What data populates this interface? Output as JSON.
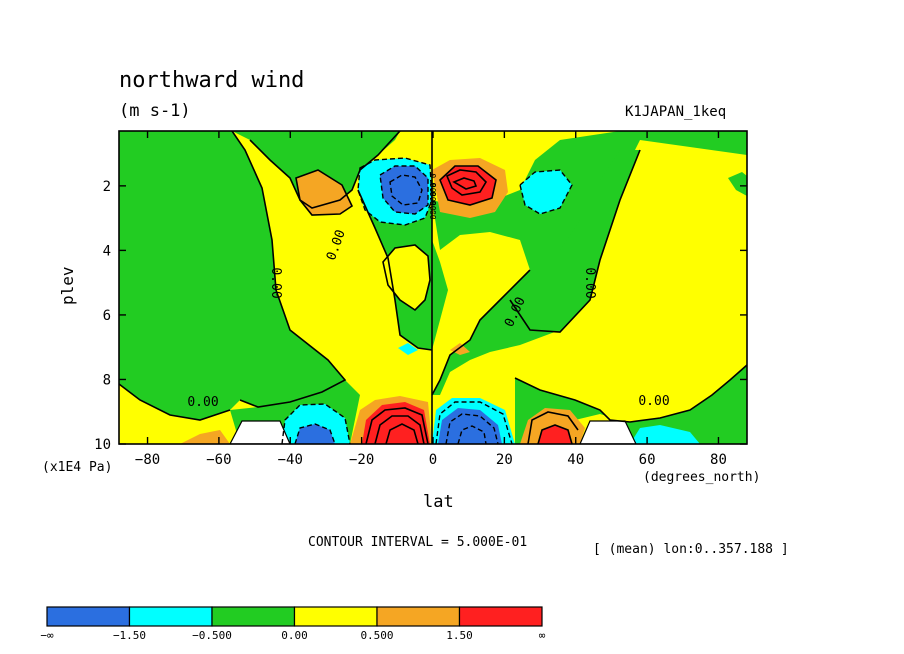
{
  "header": {
    "title": "northward wind",
    "units": "(m s-1)",
    "dataset": "K1JAPAN_1keq"
  },
  "footer": {
    "contour_interval": "CONTOUR INTERVAL = 5.000E-01",
    "mean_note": "[ (mean) lon:0..357.188 ]"
  },
  "chart_data": {
    "type": "heatmap",
    "title": "northward wind",
    "units": "(m s-1)",
    "xlabel": "lat",
    "x_unit_label": "(degrees_north)",
    "ylabel": "plev",
    "y_unit_label": "(x1E4 Pa)",
    "xlim": [
      -88,
      88
    ],
    "ylim": [
      0.3,
      10
    ],
    "y_inverted": true,
    "x_ticks": [
      -80,
      -60,
      -40,
      -20,
      0,
      20,
      40,
      60,
      80
    ],
    "y_ticks": [
      2,
      4,
      6,
      8,
      10
    ],
    "contour_labels": [
      "0.00",
      "0.00",
      "0.00",
      "0.00",
      "0.00",
      "0.00"
    ],
    "color_levels": [
      {
        "label": "-∞",
        "range": "< -1.50",
        "color": "#2b6fe0"
      },
      {
        "label": "-1.50",
        "range": "-1.50 to -0.500",
        "color": "#00ffff"
      },
      {
        "label": "-0.500",
        "range": "-0.500 to 0.00",
        "color": "#22cc22"
      },
      {
        "label": "0.00",
        "range": "0.00 to 0.500",
        "color": "#ffff00"
      },
      {
        "label": "0.500",
        "range": "0.500 to 1.50",
        "color": "#f5a623"
      },
      {
        "label": "1.50",
        "range": "> 1.50",
        "color": "#ff2020"
      }
    ],
    "colorbar_labels": [
      "-∞",
      "-1.50",
      "-0.500",
      "0.00",
      "0.500",
      "1.50",
      "∞"
    ],
    "features": [
      {
        "region": "negative core",
        "lat": -8,
        "plev": 1.8,
        "approx_value": -2.0
      },
      {
        "region": "positive core",
        "lat": 8,
        "plev": 1.8,
        "approx_value": 2.0
      },
      {
        "region": "positive core",
        "lat": -7,
        "plev": 9.5,
        "approx_value": 2.5
      },
      {
        "region": "negative core",
        "lat": 8,
        "plev": 9.5,
        "approx_value": -2.5
      },
      {
        "region": "negative core",
        "lat": -35,
        "plev": 9.8,
        "approx_value": -1.8
      },
      {
        "region": "positive core",
        "lat": 35,
        "plev": 9.8,
        "approx_value": 1.8
      }
    ]
  }
}
